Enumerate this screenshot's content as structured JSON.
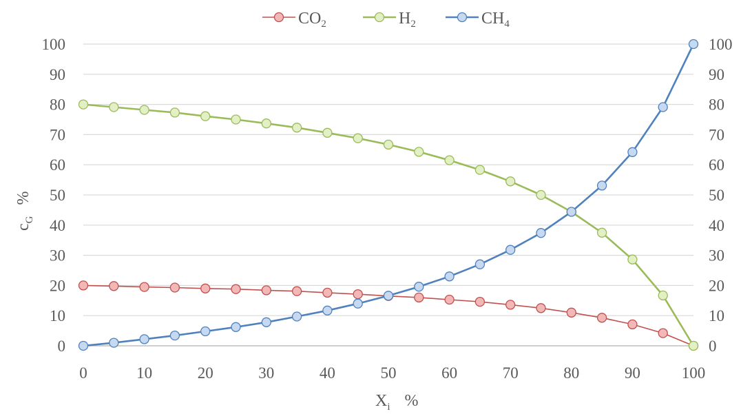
{
  "chart_data": {
    "type": "line",
    "title": "",
    "xlabel": {
      "main": "X",
      "sub": "i",
      "unit": "%"
    },
    "ylabel": {
      "main": "c",
      "sub": "G",
      "unit": "%"
    },
    "xlim": [
      0,
      100
    ],
    "ylim": [
      0,
      100
    ],
    "x_ticks": [
      "0",
      "10",
      "20",
      "30",
      "40",
      "50",
      "60",
      "70",
      "80",
      "90",
      "100"
    ],
    "y_ticks": [
      "0",
      "10",
      "20",
      "30",
      "40",
      "50",
      "60",
      "70",
      "80",
      "90",
      "100"
    ],
    "secondary_y_axis": true,
    "grid": "horizontal",
    "legend_position": "top",
    "x": [
      0,
      5,
      10,
      15,
      20,
      25,
      30,
      35,
      40,
      45,
      50,
      55,
      60,
      65,
      70,
      75,
      80,
      85,
      90,
      95,
      100
    ],
    "series": [
      {
        "name": "CO",
        "name_sub": "2",
        "color": "#c0504d",
        "marker_fill": "#f2b8b7",
        "values": [
          20,
          19.8,
          19.5,
          19.3,
          19.0,
          18.8,
          18.4,
          18.1,
          17.6,
          17.1,
          16.5,
          16.0,
          15.3,
          14.6,
          13.6,
          12.5,
          11.0,
          9.3,
          7.1,
          4.2,
          0
        ]
      },
      {
        "name": "H",
        "name_sub": "2",
        "color": "#9bbb59",
        "marker_fill": "#e3efc5",
        "values": [
          80,
          79.1,
          78.2,
          77.3,
          76.1,
          75.0,
          73.7,
          72.3,
          70.6,
          68.8,
          66.7,
          64.3,
          61.5,
          58.3,
          54.5,
          50.0,
          44.4,
          37.5,
          28.6,
          16.7,
          0
        ]
      },
      {
        "name": "CH",
        "name_sub": "4",
        "color": "#4f81bd",
        "marker_fill": "#c6d9f1",
        "values": [
          0,
          1.0,
          2.2,
          3.4,
          4.8,
          6.2,
          7.8,
          9.7,
          11.7,
          14.0,
          16.6,
          19.6,
          23.0,
          27.0,
          31.8,
          37.4,
          44.4,
          53.1,
          64.2,
          79.1,
          100
        ]
      }
    ]
  }
}
